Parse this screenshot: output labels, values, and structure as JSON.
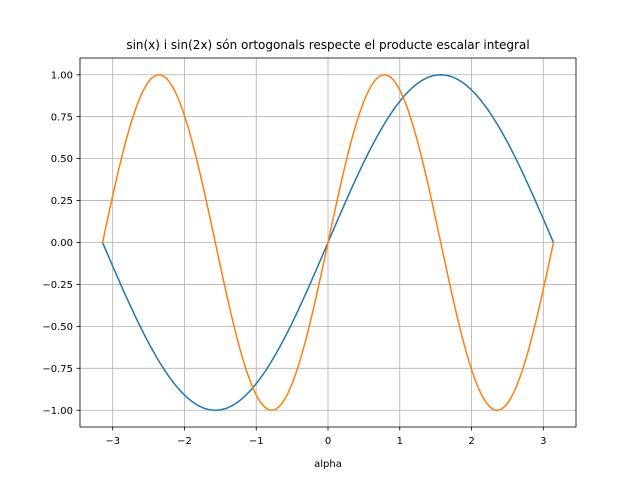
{
  "chart_data": {
    "type": "line",
    "title": "sin(x) i sin(2x) són ortogonals respecte el producte escalar integral",
    "xlabel": "alpha",
    "ylabel": "",
    "xlim": [
      -3.456,
      3.456
    ],
    "ylim": [
      -1.1,
      1.1
    ],
    "x_ticks": [
      -3,
      -2,
      -1,
      0,
      1,
      2,
      3
    ],
    "x_tick_labels": [
      "−3",
      "−2",
      "−1",
      "0",
      "1",
      "2",
      "3"
    ],
    "y_ticks": [
      -1.0,
      -0.75,
      -0.5,
      -0.25,
      0.0,
      0.25,
      0.5,
      0.75,
      1.0
    ],
    "y_tick_labels": [
      "−1.00",
      "−0.75",
      "−0.50",
      "−0.25",
      "0.00",
      "0.25",
      "0.50",
      "0.75",
      "1.00"
    ],
    "grid": true,
    "legend": "none",
    "x_range": [
      -3.14159,
      3.14159
    ],
    "series": [
      {
        "function": "sin(x)",
        "color": "#1f77b4",
        "x": [
          -3.14159,
          -2.74889,
          -2.35619,
          -1.9635,
          -1.5708,
          -1.1781,
          -0.7854,
          -0.3927,
          0.0,
          0.3927,
          0.7854,
          1.1781,
          1.5708,
          1.9635,
          2.35619,
          2.74889,
          3.14159
        ],
        "values": [
          0.0,
          -0.3827,
          -0.7071,
          -0.9239,
          -1.0,
          -0.9239,
          -0.7071,
          -0.3827,
          0.0,
          0.3827,
          0.7071,
          0.9239,
          1.0,
          0.9239,
          0.7071,
          0.3827,
          0.0
        ]
      },
      {
        "function": "sin(2x)",
        "color": "#ff7f0e",
        "x": [
          -3.14159,
          -2.74889,
          -2.35619,
          -1.9635,
          -1.5708,
          -1.1781,
          -0.7854,
          -0.3927,
          0.0,
          0.3927,
          0.7854,
          1.1781,
          1.5708,
          1.9635,
          2.35619,
          2.74889,
          3.14159
        ],
        "values": [
          0.0,
          0.7071,
          1.0,
          0.7071,
          0.0,
          -0.7071,
          -1.0,
          -0.7071,
          0.0,
          0.7071,
          1.0,
          0.7071,
          0.0,
          -0.7071,
          -1.0,
          -0.7071,
          0.0
        ]
      }
    ]
  }
}
